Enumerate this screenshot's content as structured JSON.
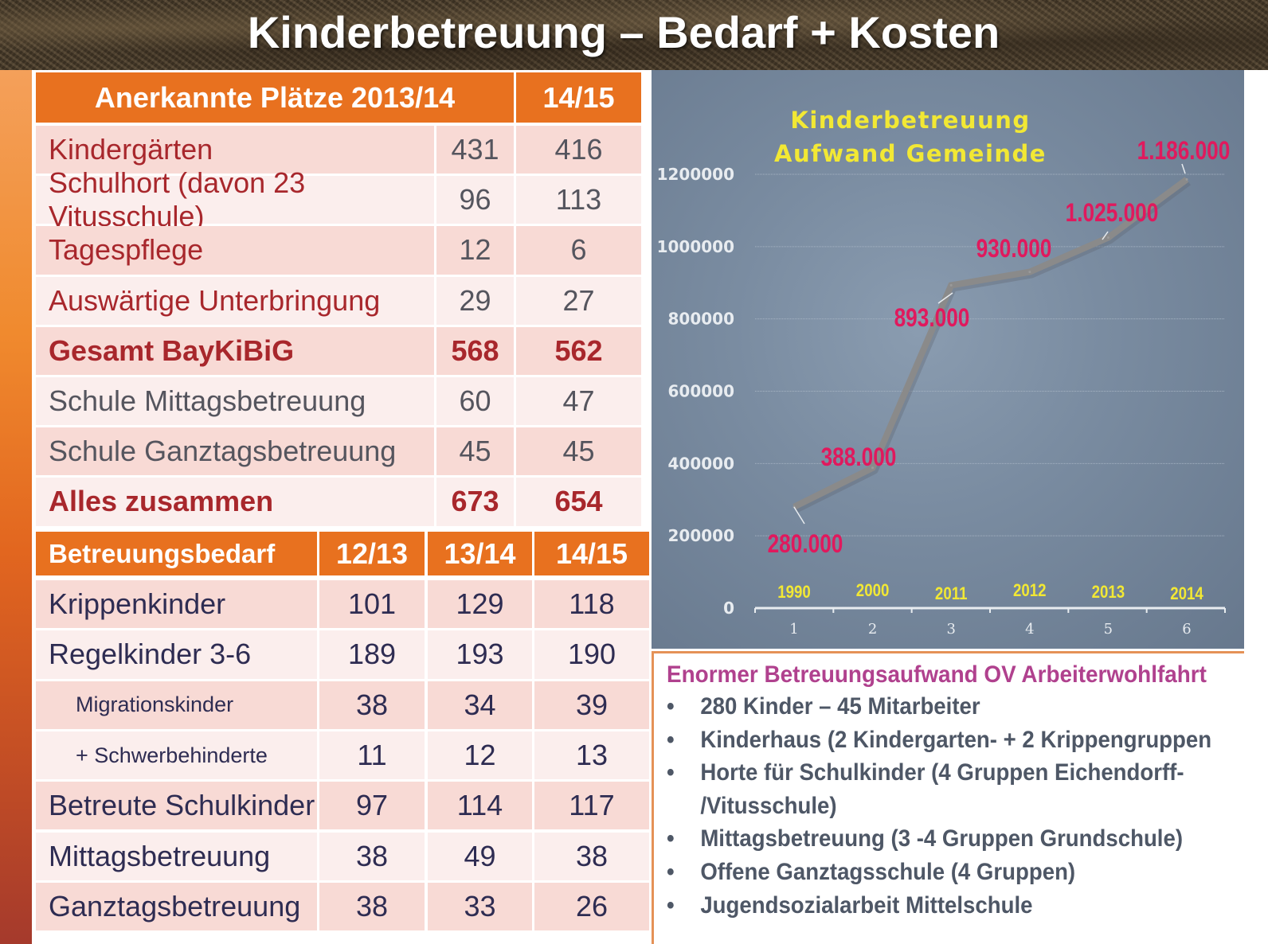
{
  "title": "Kinderbetreuung – Bedarf + Kosten",
  "table1": {
    "headers": [
      "Anerkannte Plätze 2013/14",
      "14/15"
    ],
    "rows": [
      {
        "label": "Kindergärten",
        "v1": "431",
        "v2": "416",
        "style": "red"
      },
      {
        "label": "Schulhort (davon 23 Vitusschule)",
        "v1": "96",
        "v2": "113",
        "style": "red"
      },
      {
        "label": "Tagespflege",
        "v1": "12",
        "v2": "6",
        "style": "red"
      },
      {
        "label": "Auswärtige Unterbringung",
        "v1": "29",
        "v2": "27",
        "style": "red"
      },
      {
        "label": "Gesamt BayKiBiG",
        "v1": "568",
        "v2": "562",
        "style": "total"
      },
      {
        "label": "Schule Mittagsbetreuung",
        "v1": "60",
        "v2": "47",
        "style": "grey"
      },
      {
        "label": "Schule Ganztagsbetreuung",
        "v1": "45",
        "v2": "45",
        "style": "grey"
      },
      {
        "label": "Alles zusammen",
        "v1": "673",
        "v2": "654",
        "style": "total"
      }
    ]
  },
  "table2": {
    "headers": [
      "Betreuungsbedarf",
      "12/13",
      "13/14",
      "14/15"
    ],
    "rows": [
      {
        "label": "Krippenkinder",
        "v1": "101",
        "v2": "129",
        "v3": "118",
        "indent": false
      },
      {
        "label": "Regelkinder 3-6",
        "v1": "189",
        "v2": "193",
        "v3": "190",
        "indent": false
      },
      {
        "label": "Migrationskinder",
        "v1": "38",
        "v2": "34",
        "v3": "39",
        "indent": true
      },
      {
        "label": "+ Schwerbehinderte",
        "v1": "11",
        "v2": "12",
        "v3": "13",
        "indent": true
      },
      {
        "label": "Betreute Schulkinder",
        "v1": "97",
        "v2": "114",
        "v3": "117",
        "indent": false
      },
      {
        "label": "Mittagsbetreuung",
        "v1": "38",
        "v2": "49",
        "v3": "38",
        "indent": false
      },
      {
        "label": "Ganztagsbetreuung",
        "v1": "38",
        "v2": "33",
        "v3": "26",
        "indent": false
      }
    ]
  },
  "chart_data": {
    "type": "line",
    "title_lines": [
      "Kinderbetreuung",
      "Aufwand Gemeinde"
    ],
    "x": [
      1,
      2,
      3,
      4,
      5,
      6
    ],
    "x_tick_labels": [
      "1",
      "2",
      "3",
      "4",
      "5",
      "6"
    ],
    "category_labels": [
      "1990",
      "2000",
      "2011",
      "2012",
      "2013",
      "2014"
    ],
    "series": [
      {
        "name": "Aufwand Gemeinde",
        "values": [
          280000,
          388000,
          893000,
          930000,
          1025000,
          1186000
        ]
      }
    ],
    "data_labels": [
      "280.000",
      "388.000",
      "893.000",
      "930.000",
      "1.025.000",
      "1.186.000"
    ],
    "y_ticks": [
      0,
      200000,
      400000,
      600000,
      800000,
      1000000,
      1200000
    ],
    "y_tick_labels": [
      "0",
      "200000",
      "400000",
      "600000",
      "800000",
      "1000000",
      "1200000"
    ],
    "ylim": [
      0,
      1200000
    ],
    "xlabel": "",
    "ylabel": "",
    "grid": true,
    "colors": {
      "line": "#8a8a8a",
      "data_label": "#e0195d",
      "title": "#f2e834",
      "category": "#f2e834",
      "tick": "#e8ecf0"
    }
  },
  "textbox": {
    "heading": "Enormer Betreuungsaufwand OV Arbeiterwohlfahrt",
    "bullet": "•",
    "items": [
      [
        "280 Kinder – 45 Mitarbeiter"
      ],
      [
        "Kinderhaus (2 Kindergarten- + 2 Krippengruppen"
      ],
      [
        "Horte für Schulkinder (4 Gruppen  Eichendorff-",
        "/Vitusschule)"
      ],
      [
        "Mittagsbetreuung (3 -4 Gruppen Grundschule)"
      ],
      [
        "Offene Ganztagsschule (4 Gruppen)"
      ],
      [
        "Jugendsozialarbeit Mittelschule"
      ]
    ]
  }
}
